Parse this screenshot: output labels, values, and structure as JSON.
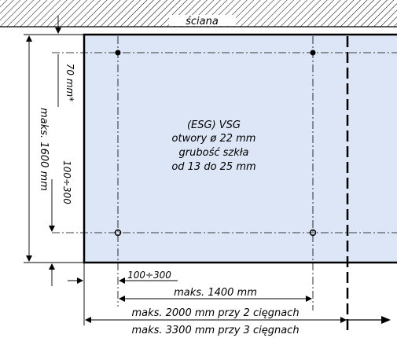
{
  "wall_label": "ściana",
  "glass": {
    "line1": "(ESG) VSG",
    "line2": "otwory ø 22 mm",
    "line3": "grubość szkła",
    "line4": "od 13 do 25 mm"
  },
  "dimensions": {
    "top_offset": "70 mm*",
    "vertical_spacing": "100÷300",
    "max_height": "maks. 1600 mm",
    "left_offset": "100÷300",
    "max_hole_span": "maks. 1400 mm",
    "max_width_2_rods": "maks. 2000 mm przy 2 cięgnach",
    "max_width_3_rods": "maks. 3300 mm przy 3 cięgnach"
  },
  "colors": {
    "glass_fill": "#dde6f6",
    "line": "#000000"
  }
}
